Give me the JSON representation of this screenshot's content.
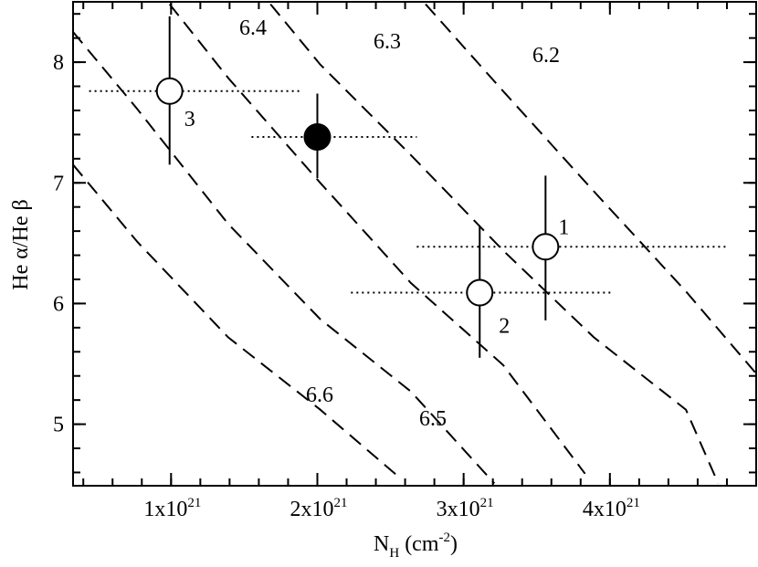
{
  "chart_data": {
    "type": "scatter",
    "x_label": {
      "main": "N",
      "sub": "H",
      "open": " (cm",
      "sup": "-2",
      "close": ")"
    },
    "y_label": "He α/He β",
    "xlim": [
      3.3e+20,
      5e+21
    ],
    "ylim": [
      4.49,
      8.5
    ],
    "xticks": [
      {
        "value": 1e+21,
        "label": "1x10",
        "sup": "21"
      },
      {
        "value": 2e+21,
        "label": "2x10",
        "sup": "21"
      },
      {
        "value": 3e+21,
        "label": "3x10",
        "sup": "21"
      },
      {
        "value": 4e+21,
        "label": "4x10",
        "sup": "21"
      }
    ],
    "yticks": [
      5,
      6,
      7,
      8
    ],
    "minor_per_major": 5,
    "points": {
      "x": [
        9.9e+20,
        2e+21,
        3.11e+21,
        3.56e+21
      ],
      "y": [
        7.76,
        7.38,
        6.09,
        6.47
      ],
      "xerr_minus": [
        5.5e+20,
        4.5e+20,
        8.8e+20,
        8.8e+20
      ],
      "xerr_plus": [
        9e+20,
        6.8e+20,
        9e+20,
        1.23e+21
      ],
      "yerr_minus": [
        0.61,
        0.34,
        0.54,
        0.61
      ],
      "yerr_plus": [
        0.62,
        0.36,
        0.55,
        0.59
      ],
      "filled": [
        false,
        true,
        false,
        false
      ],
      "labels": [
        "3",
        null,
        "2",
        "1"
      ]
    },
    "curves": [
      {
        "label": "6.2",
        "x": [
          2.74e+21,
          3.27e+21,
          3.89e+21,
          4.52e+21,
          5e+21
        ],
        "y": [
          8.48,
          7.76,
          6.93,
          6.1,
          5.42
        ]
      },
      {
        "label": "6.3",
        "x": [
          1.68e+21,
          2.02e+21,
          2.64e+21,
          3.27e+21,
          3.89e+21,
          4.52e+21,
          4.74e+21
        ],
        "y": [
          8.48,
          7.98,
          7.23,
          6.44,
          5.72,
          5.12,
          4.51
        ]
      },
      {
        "label": "6.4",
        "x": [
          9.9e+20,
          1.39e+21,
          2.02e+21,
          2.64e+21,
          3.27e+21,
          3.83e+21
        ],
        "y": [
          8.48,
          7.87,
          7.0,
          6.17,
          5.49,
          4.59
        ]
      },
      {
        "label": "6.5",
        "x": [
          3.3e+20,
          7.7e+20,
          1.39e+21,
          2.02e+21,
          2.64e+21,
          3.21e+21
        ],
        "y": [
          8.25,
          7.61,
          6.66,
          5.87,
          5.27,
          4.51
        ]
      },
      {
        "label": "6.6",
        "x": [
          3.3e+20,
          7.7e+20,
          1.39e+21,
          2.02e+21,
          2.55e+21
        ],
        "y": [
          7.15,
          6.51,
          5.72,
          5.12,
          4.57
        ]
      }
    ]
  }
}
